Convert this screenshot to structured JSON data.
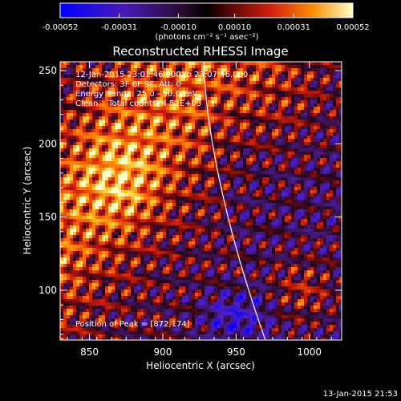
{
  "chart_data": {
    "type": "heatmap",
    "title": "Reconstructed RHESSI Image",
    "xlabel": "Heliocentric X (arcsec)",
    "ylabel": "Heliocentric Y (arcsec)",
    "xlim": [
      830,
      1022
    ],
    "ylim": [
      66,
      256
    ],
    "x_ticks": [
      850,
      900,
      950,
      1000
    ],
    "y_ticks": [
      100,
      150,
      200,
      250
    ],
    "x_tick_labels": [
      "850",
      "900",
      "950",
      "1000"
    ],
    "y_tick_labels": [
      "100",
      "150",
      "200",
      "250"
    ],
    "colorbar": {
      "range": [
        -0.00052,
        0.00052
      ],
      "ticks": [
        -0.00052,
        -0.00031,
        -0.0001,
        0.0001,
        0.00031,
        0.00052
      ],
      "tick_labels": [
        "-0.00052",
        "-0.00031",
        "-0.00010",
        "0.00010",
        "0.00031",
        "0.00052"
      ],
      "label": "(photons cm⁻² s⁻¹ asec⁻²)",
      "colors": [
        "#0000ff",
        "#6a1a9a",
        "#000000",
        "#b01010",
        "#ff6a00",
        "#ffff80"
      ]
    },
    "info_lines": [
      "12-Jan-2015 23:01:46.000 to 23:07:46.000",
      "Detectors: 3F 6F 9F, Att: 0",
      "Energy Range: 25.0 - 50.0 keV",
      "Clean    Total counts: 4.52E+03"
    ],
    "peak_label": "Position of Peak = [872,174]",
    "peak": [
      872,
      174
    ],
    "limb_color": "#ffffff"
  },
  "footer": {
    "timestamp": "13-Jan-2015 21:53"
  }
}
